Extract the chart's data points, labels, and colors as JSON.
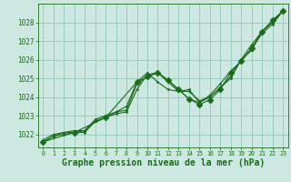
{
  "background_color": "#cce8e0",
  "grid_color": "#99ccc4",
  "line_color": "#1a6b1a",
  "marker_color": "#1a6b1a",
  "xlabel": "Graphe pression niveau de la mer (hPa)",
  "xlabel_fontsize": 7,
  "xlim": [
    -0.5,
    23.5
  ],
  "ylim": [
    1021.3,
    1029.0
  ],
  "yticks": [
    1022,
    1023,
    1024,
    1025,
    1026,
    1027,
    1028
  ],
  "xticks": [
    0,
    1,
    2,
    3,
    4,
    5,
    6,
    7,
    8,
    9,
    10,
    11,
    12,
    13,
    14,
    15,
    16,
    17,
    18,
    19,
    20,
    21,
    22,
    23
  ],
  "series": [
    {
      "x": [
        0,
        1,
        2,
        3,
        4,
        5,
        6,
        7,
        8,
        9,
        10,
        11,
        12,
        13,
        14,
        15,
        16,
        17,
        18,
        19,
        20,
        21,
        22,
        23
      ],
      "y": [
        1021.6,
        1021.9,
        1022.1,
        1022.1,
        1022.2,
        1022.7,
        1022.9,
        1023.2,
        1023.3,
        1024.7,
        1025.1,
        1025.3,
        1024.9,
        1024.4,
        1023.9,
        1023.7,
        1024.0,
        1024.5,
        1025.0,
        1026.0,
        1026.8,
        1027.5,
        1028.1,
        1028.6
      ]
    },
    {
      "x": [
        0,
        1,
        2,
        3,
        4,
        5,
        6,
        7,
        8,
        9,
        10,
        11,
        12,
        13,
        14,
        15,
        16,
        17,
        18,
        19,
        20,
        21,
        22,
        23
      ],
      "y": [
        1021.6,
        1021.9,
        1022.0,
        1022.1,
        1022.1,
        1022.7,
        1022.9,
        1023.1,
        1023.2,
        1024.4,
        1025.2,
        1025.3,
        1024.8,
        1024.3,
        1024.3,
        1023.8,
        1024.0,
        1024.5,
        1025.1,
        1026.0,
        1026.5,
        1027.5,
        1028.0,
        1028.6
      ]
    },
    {
      "x": [
        0,
        1,
        2,
        3,
        4,
        5,
        6,
        7,
        8,
        9,
        10,
        11,
        12,
        13,
        14,
        15,
        16,
        17,
        18,
        19,
        20,
        21,
        22,
        23
      ],
      "y": [
        1021.7,
        1022.0,
        1022.1,
        1022.2,
        1022.2,
        1022.8,
        1023.0,
        1023.2,
        1023.5,
        1024.8,
        1025.3,
        1024.8,
        1024.4,
        1024.3,
        1024.4,
        1023.7,
        1024.1,
        1024.7,
        1025.4,
        1025.9,
        1026.6,
        1027.4,
        1027.9,
        1028.6
      ]
    },
    {
      "x": [
        0,
        3,
        6,
        9,
        10,
        11,
        12,
        13,
        14,
        15,
        16,
        17,
        18,
        19,
        20,
        21,
        22,
        23
      ],
      "y": [
        1021.6,
        1022.1,
        1022.9,
        1024.8,
        1025.1,
        1025.3,
        1024.9,
        1024.4,
        1023.9,
        1023.6,
        1023.85,
        1024.4,
        1025.3,
        1025.95,
        1026.6,
        1027.5,
        1028.1,
        1028.6
      ],
      "markersize": 3.5
    }
  ]
}
